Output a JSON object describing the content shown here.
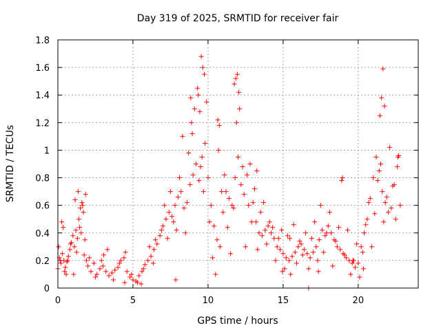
{
  "chart_data": {
    "type": "scatter",
    "title": "Day 319 of 2025, SRMTID for receiver fair",
    "xlabel": "GPS time / hours",
    "ylabel": "SRMTID / TECUs",
    "xlim": [
      0,
      24
    ],
    "ylim": [
      0,
      1.8
    ],
    "xticks": [
      0,
      5,
      10,
      15,
      20
    ],
    "xtick_labels": [
      "0",
      "5",
      "10",
      "15",
      "20"
    ],
    "yticks": [
      0,
      0.2,
      0.4,
      0.6,
      0.8,
      1.0,
      1.2,
      1.4,
      1.6,
      1.8
    ],
    "ytick_labels": [
      "0",
      "0.2",
      "0.4",
      "0.6",
      "0.8",
      "1",
      "1.2",
      "1.4",
      "1.6",
      "1.8"
    ],
    "grid": true,
    "marker": "+",
    "color": "#ff0000",
    "series": [
      {
        "name": "SRMTID",
        "x": [
          0.0,
          0.1,
          0.2,
          0.3,
          0.4,
          0.5,
          0.6,
          0.7,
          0.8,
          0.9,
          1.0,
          1.1,
          1.2,
          1.3,
          1.4,
          1.5,
          1.6,
          1.7,
          1.8,
          1.9,
          2.0,
          2.2,
          2.4,
          2.6,
          2.8,
          3.0,
          3.2,
          3.4,
          3.6,
          3.8,
          4.0,
          4.2,
          4.4,
          4.6,
          4.8,
          5.0,
          5.2,
          5.4,
          5.6,
          5.8,
          6.0,
          6.2,
          6.4,
          6.6,
          6.8,
          7.0,
          7.2,
          7.4,
          7.6,
          7.8,
          8.0,
          8.2,
          8.4,
          8.6,
          8.8,
          9.0,
          9.2,
          9.4,
          9.6,
          9.8,
          10.0,
          10.2,
          10.4,
          10.6,
          10.8,
          11.0,
          11.2,
          11.4,
          11.6,
          11.8,
          12.0,
          12.2,
          12.4,
          12.6,
          12.8,
          13.0,
          13.2,
          13.4,
          13.6,
          13.8,
          14.0,
          14.2,
          14.4,
          14.6,
          14.8,
          15.0,
          15.2,
          15.4,
          15.6,
          15.8,
          16.0,
          16.2,
          16.4,
          16.6,
          16.8,
          17.0,
          17.2,
          17.4,
          17.6,
          17.8,
          18.0,
          18.2,
          18.4,
          18.6,
          18.8,
          19.0,
          19.2,
          19.4,
          19.6,
          19.8,
          20.0,
          20.2,
          20.4,
          20.6,
          20.8,
          21.0,
          21.2,
          21.4,
          21.6,
          21.8,
          22.0,
          22.2,
          22.4,
          22.6,
          22.8,
          0.05,
          0.25,
          0.45,
          0.65,
          0.85,
          1.05,
          1.25,
          1.45,
          1.65,
          1.85,
          2.1,
          2.5,
          2.9,
          3.3,
          3.7,
          4.1,
          4.5,
          4.9,
          5.3,
          5.7,
          6.1,
          6.5,
          6.9,
          7.1,
          7.3,
          7.5,
          7.7,
          7.9,
          8.1,
          8.3,
          8.5,
          8.7,
          8.9,
          9.1,
          9.3,
          9.5,
          9.7,
          9.9,
          10.1,
          10.3,
          10.5,
          10.7,
          10.9,
          11.1,
          11.3,
          11.5,
          11.7,
          11.9,
          12.1,
          12.3,
          12.5,
          12.7,
          12.9,
          13.1,
          13.3,
          13.5,
          13.7,
          13.9,
          14.1,
          14.3,
          14.5,
          14.7,
          14.9,
          15.1,
          15.3,
          15.5,
          15.7,
          15.9,
          16.1,
          16.3,
          16.5,
          16.7,
          16.9,
          17.1,
          17.3,
          17.5,
          17.7,
          17.9,
          18.1,
          18.3,
          18.5,
          18.7,
          18.9,
          19.1,
          19.3,
          19.5,
          19.7,
          19.9,
          20.1,
          20.3,
          20.5,
          20.7,
          20.9,
          21.1,
          21.3,
          21.5,
          21.7,
          21.9,
          22.1,
          22.3,
          22.5,
          22.7,
          0.15,
          0.35,
          0.55,
          1.15,
          1.35,
          1.55,
          1.75,
          9.55,
          9.65,
          9.75,
          11.75,
          11.85,
          11.95,
          12.05,
          21.45,
          21.55,
          21.65,
          21.75,
          9.35,
          9.45,
          8.85,
          8.95,
          10.65,
          10.75,
          16.7,
          7.85,
          14.95,
          18.95,
          20.35,
          22.65,
          3.05,
          4.45,
          5.55,
          6.35,
          13.25,
          15.45,
          17.35,
          19.65
        ],
        "y": [
          0.14,
          0.22,
          0.18,
          0.25,
          0.2,
          0.15,
          0.19,
          0.23,
          0.28,
          0.33,
          0.38,
          0.3,
          0.42,
          0.36,
          0.5,
          0.58,
          0.62,
          0.55,
          0.35,
          0.2,
          0.16,
          0.12,
          0.18,
          0.1,
          0.14,
          0.16,
          0.12,
          0.09,
          0.11,
          0.13,
          0.15,
          0.2,
          0.22,
          0.12,
          0.08,
          0.06,
          0.05,
          0.09,
          0.12,
          0.17,
          0.2,
          0.23,
          0.28,
          0.32,
          0.38,
          0.45,
          0.5,
          0.55,
          0.52,
          0.6,
          0.66,
          0.7,
          0.58,
          0.62,
          0.75,
          0.82,
          0.9,
          0.78,
          0.95,
          1.05,
          0.8,
          0.6,
          0.45,
          0.35,
          0.3,
          0.55,
          0.7,
          0.65,
          0.6,
          0.8,
          0.95,
          0.75,
          0.68,
          0.82,
          0.9,
          0.62,
          0.48,
          0.4,
          0.38,
          0.42,
          0.45,
          0.4,
          0.36,
          0.3,
          0.28,
          0.25,
          0.22,
          0.2,
          0.23,
          0.26,
          0.3,
          0.32,
          0.28,
          0.25,
          0.22,
          0.26,
          0.3,
          0.35,
          0.42,
          0.38,
          0.45,
          0.4,
          0.35,
          0.3,
          0.28,
          0.25,
          0.22,
          0.2,
          0.18,
          0.15,
          0.18,
          0.3,
          0.4,
          0.5,
          0.65,
          0.8,
          0.95,
          0.85,
          0.7,
          0.62,
          0.55,
          0.58,
          0.75,
          0.88,
          0.6,
          0.3,
          0.48,
          0.12,
          0.2,
          0.32,
          0.1,
          0.26,
          0.44,
          0.6,
          0.68,
          0.22,
          0.08,
          0.2,
          0.28,
          0.06,
          0.18,
          0.26,
          0.1,
          0.04,
          0.14,
          0.3,
          0.35,
          0.42,
          0.6,
          0.36,
          0.7,
          0.48,
          0.42,
          0.8,
          1.1,
          0.4,
          0.98,
          1.2,
          1.3,
          1.45,
          0.88,
          0.7,
          1.35,
          0.48,
          0.22,
          0.1,
          1.0,
          0.7,
          0.82,
          0.44,
          0.25,
          0.58,
          1.2,
          1.3,
          0.88,
          0.3,
          0.6,
          0.48,
          0.72,
          0.28,
          0.55,
          0.62,
          0.32,
          0.48,
          0.44,
          0.2,
          0.36,
          0.42,
          0.14,
          0.38,
          0.1,
          0.46,
          0.18,
          0.34,
          0.24,
          0.4,
          0.14,
          0.36,
          0.48,
          0.2,
          0.6,
          0.26,
          0.4,
          0.55,
          0.16,
          0.34,
          0.44,
          0.78,
          0.24,
          0.42,
          0.1,
          0.2,
          0.32,
          0.08,
          0.26,
          0.46,
          0.62,
          0.3,
          0.54,
          0.78,
          0.9,
          0.48,
          0.66,
          1.02,
          0.74,
          0.5,
          0.96,
          0.2,
          0.44,
          0.1,
          0.64,
          0.7,
          0.4,
          0.24,
          1.68,
          1.6,
          1.55,
          1.48,
          1.52,
          1.55,
          1.42,
          1.25,
          1.38,
          1.59,
          1.32,
          1.4,
          1.28,
          1.38,
          1.12,
          1.22,
          1.18,
          0.0,
          0.06,
          0.12,
          0.8,
          0.14,
          0.95,
          0.24,
          0.04,
          0.03,
          0.18,
          0.85,
          0.36,
          0.12,
          0.2
        ]
      }
    ]
  }
}
